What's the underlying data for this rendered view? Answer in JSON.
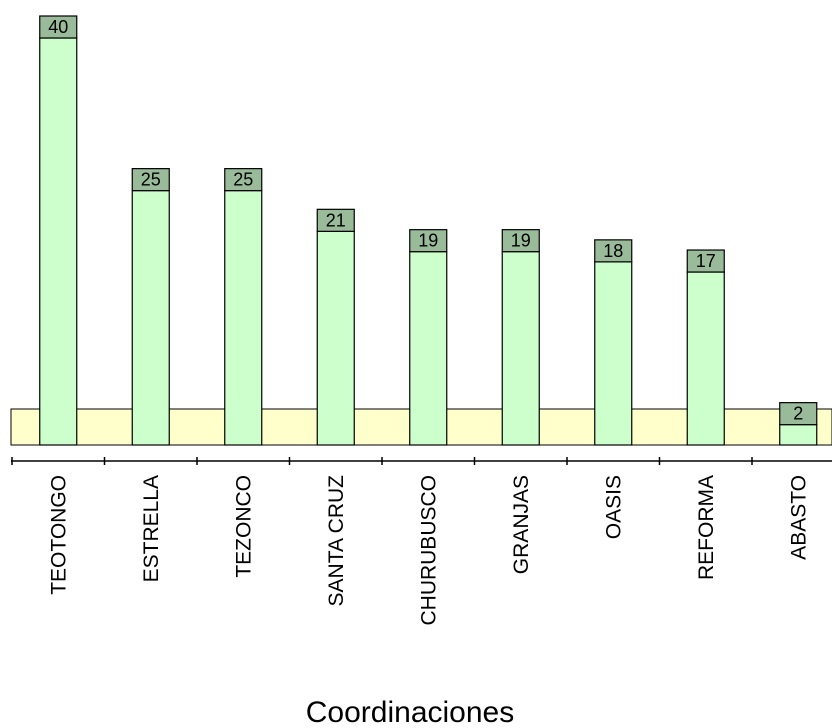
{
  "chart_data": {
    "type": "bar",
    "xlabel": "Coordinaciones",
    "categories": [
      "TEOTONGO",
      "ESTRELLA",
      "TEZONCO",
      "SANTA CRUZ",
      "CHURUBUSCO",
      "GRANJAS",
      "OASIS",
      "REFORMA",
      "ABASTO"
    ],
    "values": [
      40,
      25,
      25,
      21,
      19,
      19,
      18,
      17,
      2
    ],
    "ylim": [
      0,
      40
    ],
    "grid": false,
    "colors": {
      "bar_fill": "#ccffcc",
      "label_box_fill": "#99bb99",
      "reference_band_fill": "#ffffcc",
      "stroke": "#000000"
    }
  }
}
